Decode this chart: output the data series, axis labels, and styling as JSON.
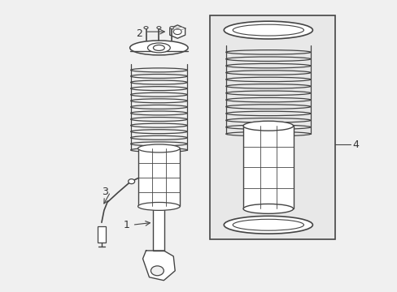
{
  "bg_color": "#f0f0f0",
  "line_color": "#888888",
  "dark_line": "#444444",
  "label_color": "#333333",
  "box_bg": "#e8e8e8",
  "figsize": [
    4.89,
    3.6
  ],
  "dpi": 100
}
